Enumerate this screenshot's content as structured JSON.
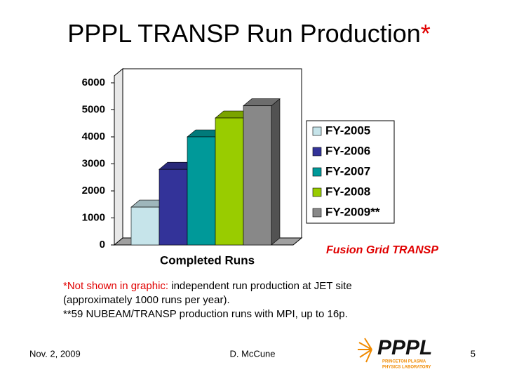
{
  "header": {
    "title": "PPPL TRANSP Run Production",
    "title_mark": "*"
  },
  "chart_data": {
    "type": "bar",
    "categories": [
      "Completed Runs"
    ],
    "series": [
      {
        "name": "FY-2005",
        "color": "#c6e4ea",
        "values": [
          1400
        ]
      },
      {
        "name": "FY-2006",
        "color": "#333399",
        "values": [
          2800
        ]
      },
      {
        "name": "FY-2007",
        "color": "#009999",
        "values": [
          4000
        ]
      },
      {
        "name": "FY-2008",
        "color": "#99cc00",
        "values": [
          4700
        ]
      },
      {
        "name": "FY-2009**",
        "color": "#888888",
        "values": [
          5150
        ]
      }
    ],
    "ylim": [
      0,
      6000
    ],
    "yticks": [
      0,
      1000,
      2000,
      3000,
      4000,
      5000,
      6000
    ],
    "grid": false,
    "legend": "right",
    "annotation": "Fusion Grid TRANSP"
  },
  "footnote": {
    "lead": "*Not shown in graphic:",
    "lines": [
      " independent run production at JET site",
      "(approximately 1000 runs per year).",
      "**59 NUBEAM/TRANSP production runs with MPI, up to 16p."
    ]
  },
  "footer": {
    "date": "Nov. 2, 2009",
    "author": "D. McCune",
    "page": "5"
  },
  "logo": {
    "name": "PPPL",
    "lines": [
      "PRINCETON PLASMA",
      "PHYSICS LABORATORY"
    ]
  }
}
